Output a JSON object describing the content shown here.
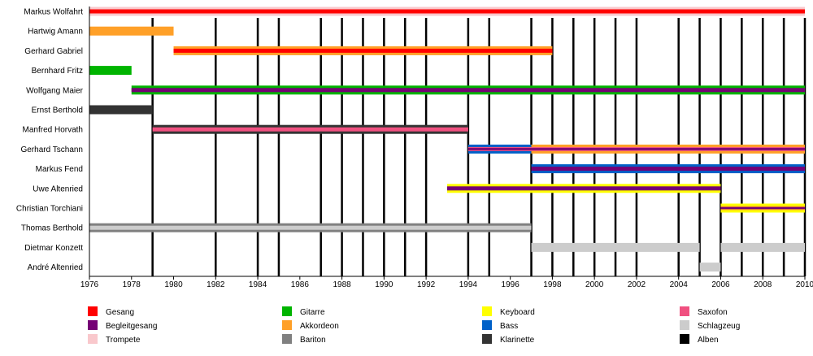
{
  "chart_data": {
    "type": "timeline",
    "title": "",
    "xlim": [
      1976,
      2010
    ],
    "x_ticks": [
      1976,
      1978,
      1980,
      1982,
      1984,
      1986,
      1988,
      1990,
      1992,
      1994,
      1996,
      1998,
      2000,
      2002,
      2004,
      2006,
      2008,
      2010
    ],
    "x_tick_labels": [
      "1976",
      "1978",
      "1980",
      "1982",
      "1984",
      "1986",
      "1988",
      "1990",
      "1992",
      "1994",
      "1996",
      "1998",
      "2000",
      "2002",
      "2004",
      "2006",
      "2008",
      "2010"
    ],
    "album_years": [
      1979,
      1982,
      1984,
      1985,
      1987,
      1988,
      1989,
      1990,
      1991,
      1992,
      1994,
      1995,
      1997,
      1998,
      1999,
      2000,
      2001,
      2002,
      2004,
      2005,
      2006,
      2007,
      2008,
      2009,
      2010
    ],
    "instruments": [
      {
        "key": "gesang",
        "label": "Gesang",
        "color": "#ff0000"
      },
      {
        "key": "begleitgesang",
        "label": "Begleitgesang",
        "color": "#750075"
      },
      {
        "key": "trompete",
        "label": "Trompete",
        "color": "#f9c8cc"
      },
      {
        "key": "gitarre",
        "label": "Gitarre",
        "color": "#00b400"
      },
      {
        "key": "akkordeon",
        "label": "Akkordeon",
        "color": "#ffa028"
      },
      {
        "key": "bariton",
        "label": "Bariton",
        "color": "#808080"
      },
      {
        "key": "keyboard",
        "label": "Keyboard",
        "color": "#ffff00"
      },
      {
        "key": "bass",
        "label": "Bass",
        "color": "#0060c8"
      },
      {
        "key": "klarinette",
        "label": "Klarinette",
        "color": "#333333"
      },
      {
        "key": "saxofon",
        "label": "Saxofon",
        "color": "#f05080"
      },
      {
        "key": "schlagzeug",
        "label": "Schlagzeug",
        "color": "#cccccc"
      },
      {
        "key": "alben",
        "label": "Alben",
        "color": "#000000"
      }
    ],
    "members": [
      {
        "name": "Markus Wolfahrt",
        "segments": [
          {
            "start": 1976,
            "end": 2010,
            "layers": [
              "trompete",
              "gesang"
            ]
          }
        ]
      },
      {
        "name": "Hartwig Amann",
        "segments": [
          {
            "start": 1976,
            "end": 1980,
            "layers": [
              "akkordeon"
            ]
          }
        ]
      },
      {
        "name": "Gerhard Gabriel",
        "segments": [
          {
            "start": 1980,
            "end": 1998,
            "layers": [
              "akkordeon",
              "gesang"
            ]
          }
        ]
      },
      {
        "name": "Bernhard Fritz",
        "segments": [
          {
            "start": 1976,
            "end": 1978,
            "layers": [
              "gitarre"
            ]
          }
        ]
      },
      {
        "name": "Wolfgang Maier",
        "segments": [
          {
            "start": 1978,
            "end": 2010,
            "layers": [
              "gitarre",
              "begleitgesang"
            ]
          }
        ]
      },
      {
        "name": "Ernst Berthold",
        "segments": [
          {
            "start": 1976,
            "end": 1979,
            "layers": [
              "klarinette"
            ]
          }
        ]
      },
      {
        "name": "Manfred Horvath",
        "segments": [
          {
            "start": 1979,
            "end": 1994,
            "layers": [
              "klarinette",
              "saxofon"
            ]
          }
        ]
      },
      {
        "name": "Gerhard Tschann",
        "segments": [
          {
            "start": 1994,
            "end": 1997,
            "layers": [
              "bass",
              "saxofon",
              "begleitgesang"
            ]
          },
          {
            "start": 1997,
            "end": 2010,
            "layers": [
              "akkordeon",
              "saxofon",
              "begleitgesang"
            ]
          }
        ]
      },
      {
        "name": "Markus Fend",
        "segments": [
          {
            "start": 1997,
            "end": 2010,
            "layers": [
              "bass",
              "begleitgesang"
            ]
          }
        ]
      },
      {
        "name": "Uwe Altenried",
        "segments": [
          {
            "start": 1993,
            "end": 1997,
            "layers": [
              "keyboard",
              "begleitgesang"
            ]
          },
          {
            "start": 1997,
            "end": 2006,
            "layers": [
              "keyboard",
              "begleitgesang"
            ]
          }
        ]
      },
      {
        "name": "Christian Torchiani",
        "segments": [
          {
            "start": 2006,
            "end": 2010,
            "layers": [
              "keyboard",
              "akkordeon",
              "begleitgesang"
            ]
          }
        ]
      },
      {
        "name": "Thomas Berthold",
        "segments": [
          {
            "start": 1976,
            "end": 1997,
            "layers": [
              "bariton",
              "schlagzeug"
            ]
          }
        ]
      },
      {
        "name": "Dietmar Konzett",
        "segments": [
          {
            "start": 1997,
            "end": 2005,
            "layers": [
              "schlagzeug"
            ]
          },
          {
            "start": 2006,
            "end": 2010,
            "layers": [
              "schlagzeug"
            ]
          }
        ]
      },
      {
        "name": "André Altenried",
        "segments": [
          {
            "start": 2005,
            "end": 2006,
            "layers": [
              "schlagzeug"
            ]
          }
        ]
      }
    ],
    "legend_placement": "bottom"
  }
}
